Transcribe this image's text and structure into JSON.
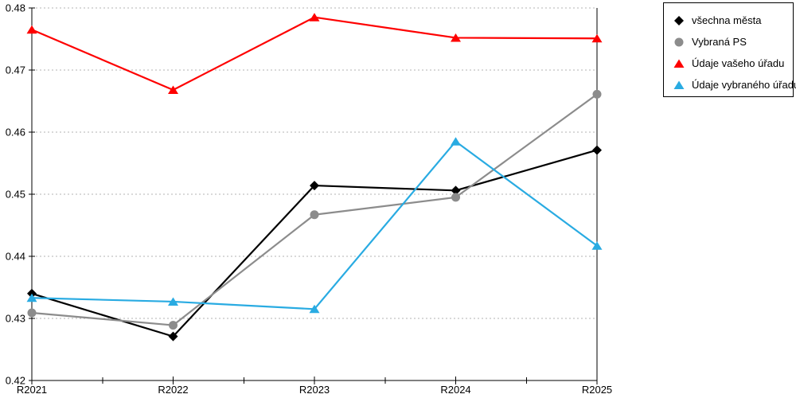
{
  "chart_data": {
    "type": "line",
    "categories": [
      "R2021",
      "R2022",
      "R2023",
      "R2024",
      "R2025"
    ],
    "series": [
      {
        "name": "všechna města",
        "marker": "diamond",
        "color": "#000000",
        "values": [
          0.434,
          0.4271,
          0.4514,
          0.4506,
          0.4571
        ]
      },
      {
        "name": "Vybraná PS",
        "marker": "circle",
        "color": "#8c8c8c",
        "values": [
          0.4309,
          0.4289,
          0.4467,
          0.4495,
          0.4661
        ]
      },
      {
        "name": "Údaje vašeho úřadu",
        "marker": "triangle",
        "color": "#fe0000",
        "values": [
          0.4765,
          0.4668,
          0.4785,
          0.4752,
          0.4751
        ]
      },
      {
        "name": "Údaje vybraného úřadu",
        "marker": "triangle",
        "color": "#29abe2",
        "values": [
          0.4333,
          0.4327,
          0.4315,
          0.4585,
          0.4417
        ]
      }
    ],
    "ylim": [
      0.42,
      0.48
    ],
    "y_ticks": [
      "0.42",
      "0.43",
      "0.44",
      "0.45",
      "0.46",
      "0.47",
      "0.48"
    ],
    "grid": true,
    "grid_color": "#b3b3b3",
    "axis_color": "#000000",
    "legend_position": "top-right",
    "title": "",
    "xlabel": "",
    "ylabel": ""
  }
}
